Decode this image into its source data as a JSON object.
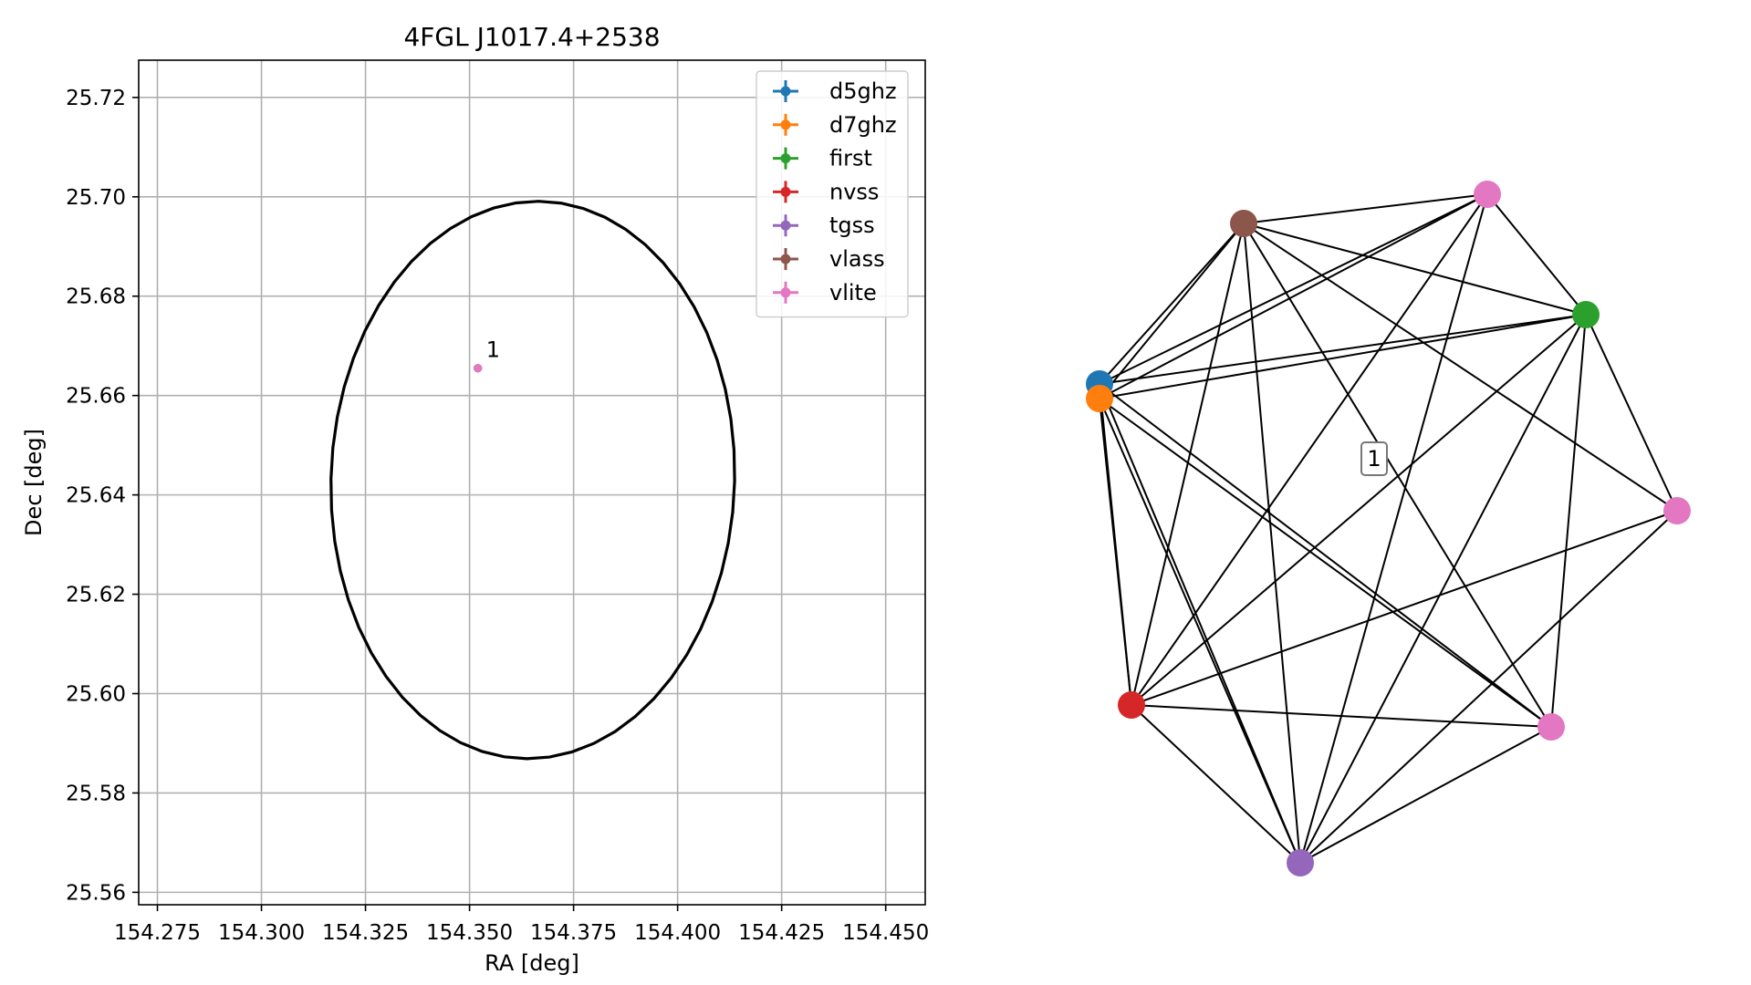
{
  "chart_data": [
    {
      "type": "scatter",
      "title": "4FGL J1017.4+2538",
      "xlabel": "RA [deg]",
      "ylabel": "Dec [deg]",
      "xlim": [
        154.2705,
        154.4595
      ],
      "ylim": [
        25.5575,
        25.7275
      ],
      "xticks": [
        154.275,
        154.3,
        154.325,
        154.35,
        154.375,
        154.4,
        154.425,
        154.45
      ],
      "xtick_labels": [
        "154.275",
        "154.300",
        "154.325",
        "154.350",
        "154.375",
        "154.400",
        "154.425",
        "154.450"
      ],
      "yticks": [
        25.56,
        25.58,
        25.6,
        25.62,
        25.64,
        25.66,
        25.68,
        25.7,
        25.72
      ],
      "ytick_labels": [
        "25.56",
        "25.58",
        "25.60",
        "25.62",
        "25.64",
        "25.66",
        "25.68",
        "25.70",
        "25.72"
      ],
      "grid": true,
      "legend_position": "top-right",
      "series": [
        {
          "name": "d5ghz",
          "color": "#1f77b4",
          "x": [
            154.352
          ],
          "y": [
            25.6655
          ]
        },
        {
          "name": "d7ghz",
          "color": "#ff7f0e",
          "x": [
            154.352
          ],
          "y": [
            25.6655
          ]
        },
        {
          "name": "first",
          "color": "#2ca02c",
          "x": [
            154.352
          ],
          "y": [
            25.6655
          ]
        },
        {
          "name": "nvss",
          "color": "#d62728",
          "x": [
            154.352
          ],
          "y": [
            25.6655
          ]
        },
        {
          "name": "tgss",
          "color": "#9467bd",
          "x": [
            154.352
          ],
          "y": [
            25.6655
          ]
        },
        {
          "name": "vlass",
          "color": "#8c564b",
          "x": [
            154.352
          ],
          "y": [
            25.6655
          ]
        },
        {
          "name": "vlite",
          "color": "#e377c2",
          "x": [
            154.352
          ],
          "y": [
            25.6655
          ]
        }
      ],
      "annotations": [
        {
          "text": "1",
          "x": 154.352,
          "y": 25.6655
        }
      ],
      "ellipse": {
        "center_x": 154.3652,
        "center_y": 25.643,
        "color": "#000000"
      }
    },
    {
      "type": "network",
      "node_labels": [
        "d5ghz",
        "d7ghz",
        "first",
        "nvss",
        "tgss",
        "vlass",
        "vlite",
        "vlite",
        "vlite"
      ],
      "node_colors": [
        "#1f77b4",
        "#ff7f0e",
        "#2ca02c",
        "#d62728",
        "#9467bd",
        "#8c564b",
        "#e377c2",
        "#e377c2",
        "#e377c2"
      ],
      "edges": [
        [
          0,
          2
        ],
        [
          0,
          3
        ],
        [
          0,
          4
        ],
        [
          0,
          5
        ],
        [
          0,
          6
        ],
        [
          0,
          8
        ],
        [
          1,
          2
        ],
        [
          1,
          3
        ],
        [
          1,
          4
        ],
        [
          1,
          5
        ],
        [
          1,
          6
        ],
        [
          1,
          8
        ],
        [
          2,
          3
        ],
        [
          2,
          4
        ],
        [
          2,
          5
        ],
        [
          2,
          6
        ],
        [
          2,
          7
        ],
        [
          2,
          8
        ],
        [
          3,
          4
        ],
        [
          3,
          5
        ],
        [
          3,
          6
        ],
        [
          3,
          7
        ],
        [
          3,
          8
        ],
        [
          4,
          5
        ],
        [
          4,
          6
        ],
        [
          4,
          7
        ],
        [
          4,
          8
        ],
        [
          5,
          6
        ],
        [
          5,
          7
        ],
        [
          5,
          8
        ]
      ],
      "group_label": "1"
    }
  ]
}
